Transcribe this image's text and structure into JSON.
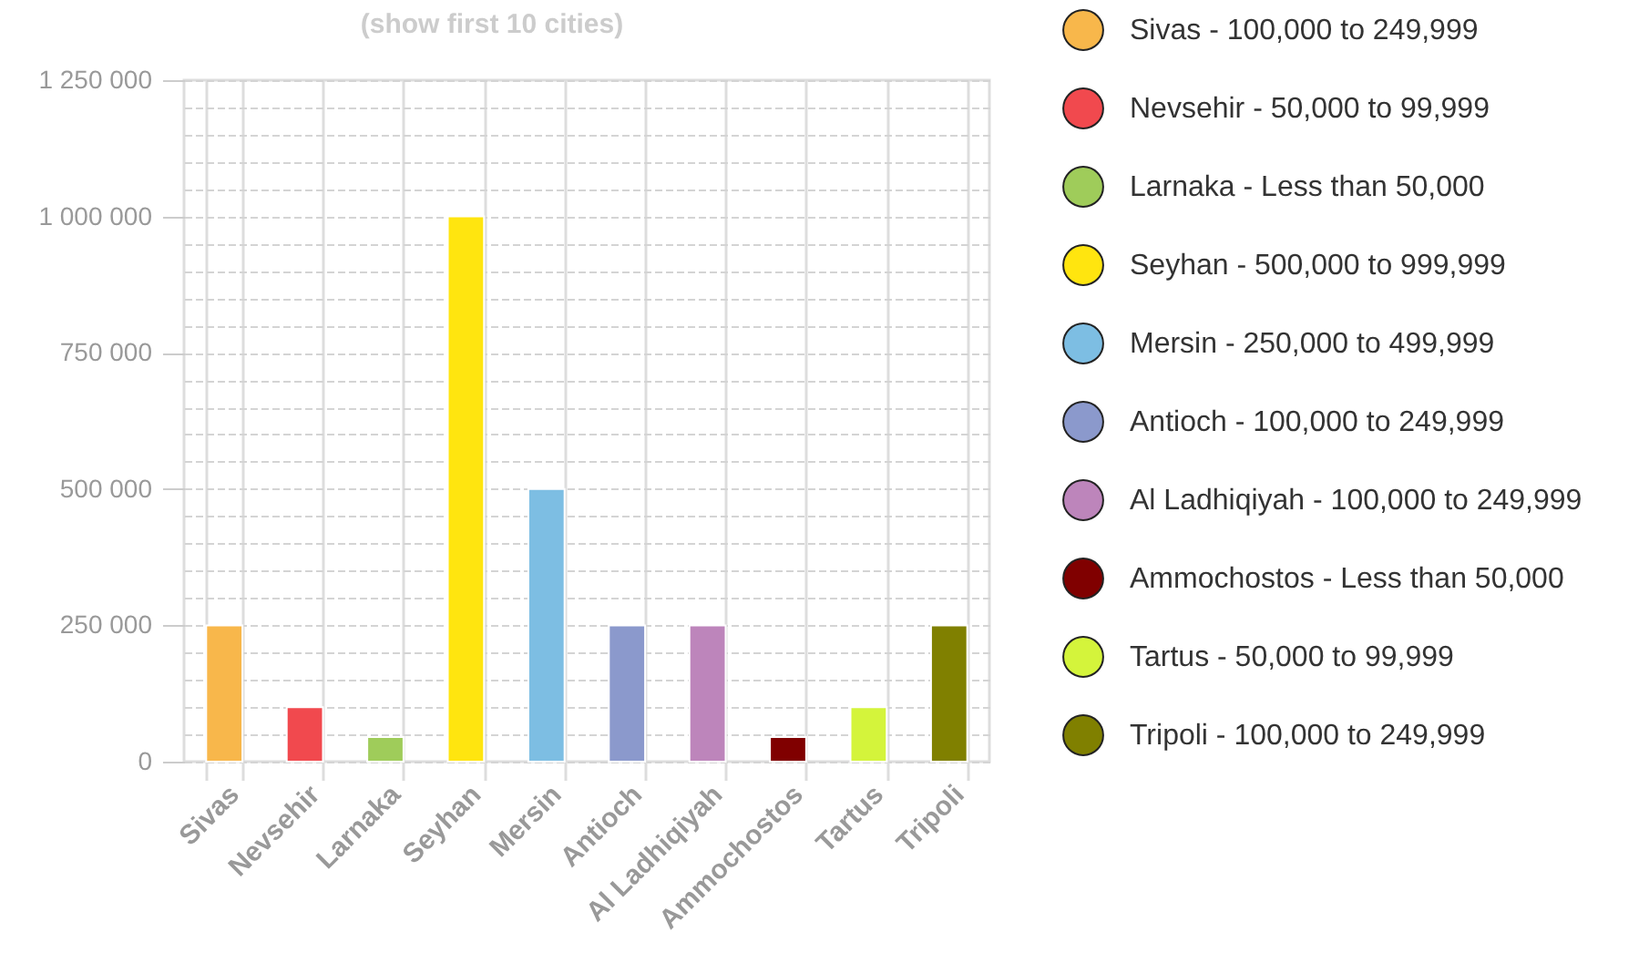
{
  "chart_data": {
    "type": "bar",
    "title": "(show first 10 cities)",
    "categories": [
      "Sivas",
      "Nevsehir",
      "Larnaka",
      "Seyhan",
      "Mersin",
      "Antioch",
      "Al Ladhiqiyah",
      "Ammochostos",
      "Tartus",
      "Tripoli"
    ],
    "series": [
      {
        "name": "Sivas - 100,000 to 249,999",
        "color": "#f8b74b",
        "values": [
          250000,
          null,
          null,
          null,
          null,
          null,
          null,
          null,
          null,
          null
        ]
      },
      {
        "name": "Nevsehir - 50,000 to 99,999",
        "color": "#f1494e",
        "values": [
          null,
          100000,
          null,
          null,
          null,
          null,
          null,
          null,
          null,
          null
        ]
      },
      {
        "name": "Larnaka - Less than 50,000",
        "color": "#9fcc5a",
        "values": [
          null,
          null,
          45000,
          null,
          null,
          null,
          null,
          null,
          null,
          null
        ]
      },
      {
        "name": "Seyhan - 500,000 to 999,999",
        "color": "#ffe50f",
        "values": [
          null,
          null,
          null,
          1000000,
          null,
          null,
          null,
          null,
          null,
          null
        ]
      },
      {
        "name": "Mersin - 250,000 to 499,999",
        "color": "#7dbee3",
        "values": [
          null,
          null,
          null,
          null,
          500000,
          null,
          null,
          null,
          null,
          null
        ]
      },
      {
        "name": "Antioch - 100,000 to 249,999",
        "color": "#8b99cc",
        "values": [
          null,
          null,
          null,
          null,
          null,
          250000,
          null,
          null,
          null,
          null
        ]
      },
      {
        "name": "Al Ladhiqiyah - 100,000 to 249,999",
        "color": "#bd85bb",
        "values": [
          null,
          null,
          null,
          null,
          null,
          null,
          250000,
          null,
          null,
          null
        ]
      },
      {
        "name": "Ammochostos - Less than 50,000",
        "color": "#800000",
        "values": [
          null,
          null,
          null,
          null,
          null,
          null,
          null,
          45000,
          null,
          null
        ]
      },
      {
        "name": "Tartus - 50,000 to 99,999",
        "color": "#d4f43b",
        "values": [
          null,
          null,
          null,
          null,
          null,
          null,
          null,
          null,
          100000,
          null
        ]
      },
      {
        "name": "Tripoli - 100,000 to 249,999",
        "color": "#808000",
        "values": [
          null,
          null,
          null,
          null,
          null,
          null,
          null,
          null,
          null,
          250000
        ]
      }
    ],
    "ylim": [
      0,
      1250000
    ],
    "yticks": [
      {
        "value": 0,
        "label": "0"
      },
      {
        "value": 50000,
        "label": null
      },
      {
        "value": 100000,
        "label": null
      },
      {
        "value": 150000,
        "label": null
      },
      {
        "value": 200000,
        "label": null
      },
      {
        "value": 250000,
        "label": "250 000"
      },
      {
        "value": 300000,
        "label": null
      },
      {
        "value": 350000,
        "label": null
      },
      {
        "value": 400000,
        "label": null
      },
      {
        "value": 450000,
        "label": null
      },
      {
        "value": 500000,
        "label": "500 000"
      },
      {
        "value": 550000,
        "label": null
      },
      {
        "value": 600000,
        "label": null
      },
      {
        "value": 650000,
        "label": null
      },
      {
        "value": 700000,
        "label": null
      },
      {
        "value": 750000,
        "label": "750 000"
      },
      {
        "value": 800000,
        "label": null
      },
      {
        "value": 850000,
        "label": null
      },
      {
        "value": 900000,
        "label": null
      },
      {
        "value": 950000,
        "label": null
      },
      {
        "value": 1000000,
        "label": "1 000 000"
      },
      {
        "value": 1050000,
        "label": null
      },
      {
        "value": 1100000,
        "label": null
      },
      {
        "value": 1150000,
        "label": null
      },
      {
        "value": 1200000,
        "label": null
      },
      {
        "value": 1250000,
        "label": "1 250 000"
      }
    ],
    "grid": true,
    "legend": "right"
  }
}
